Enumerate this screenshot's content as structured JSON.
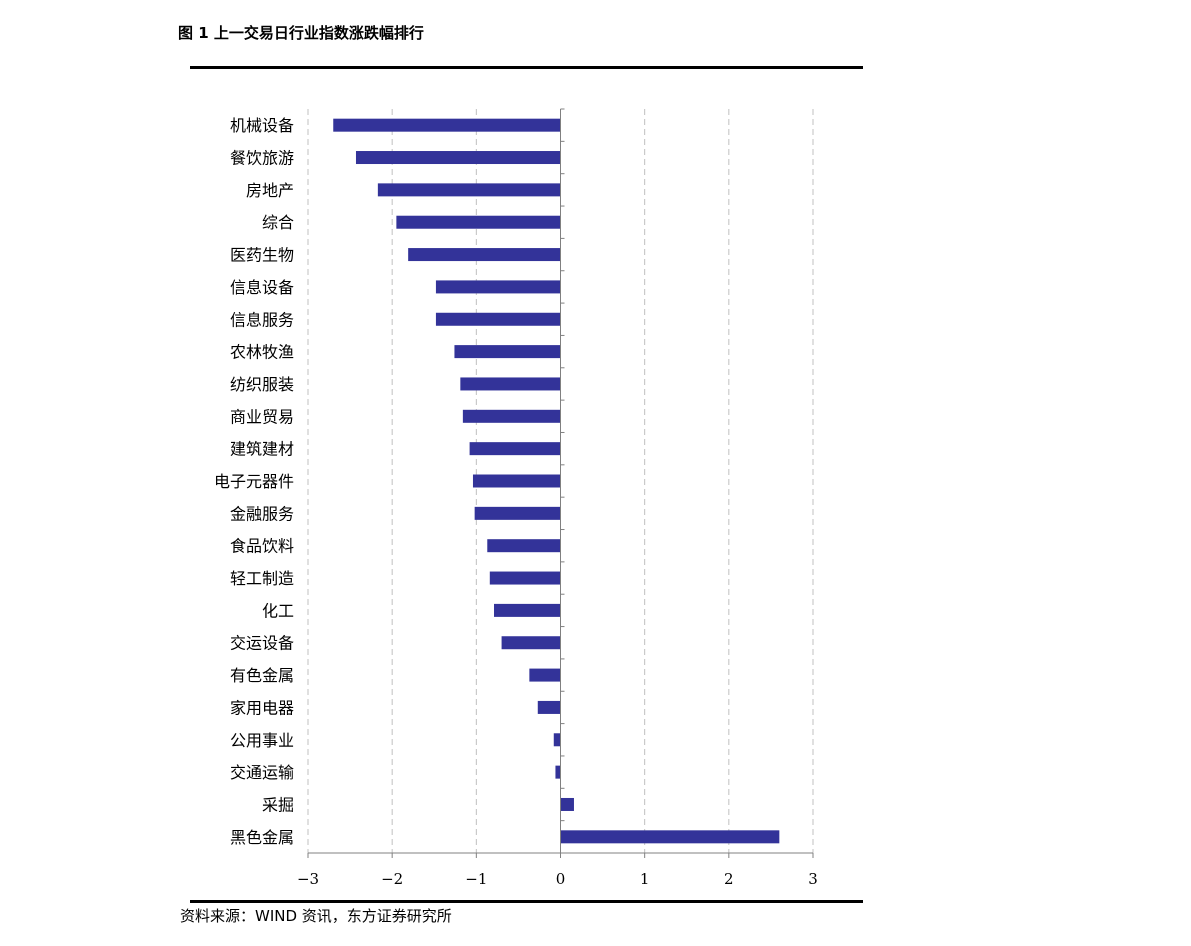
{
  "header": {
    "title": "图 1  上一交易日行业指数涨跌幅排行"
  },
  "footer": {
    "source": "资料来源：WIND 资讯，东方证券研究所"
  },
  "colors": {
    "bar": "#333399",
    "grid": "#c0c0c0",
    "axis": "#808080"
  },
  "chart_data": {
    "type": "bar",
    "orientation": "horizontal",
    "title": "",
    "xlabel": "",
    "ylabel": "",
    "xlim": [
      -3,
      3
    ],
    "x_ticks": [
      -3,
      -2,
      -1,
      0,
      1,
      2,
      3
    ],
    "x_tick_labels": [
      "−3",
      "−2",
      "−1",
      "0",
      "1",
      "2",
      "3"
    ],
    "grid": "vertical dashed",
    "legend": "none",
    "categories": [
      "机械设备",
      "餐饮旅游",
      "房地产",
      "综合",
      "医药生物",
      "信息设备",
      "信息服务",
      "农林牧渔",
      "纺织服装",
      "商业贸易",
      "建筑建材",
      "电子元器件",
      "金融服务",
      "食品饮料",
      "轻工制造",
      "化工",
      "交运设备",
      "有色金属",
      "家用电器",
      "公用事业",
      "交通运输",
      "采掘",
      "黑色金属"
    ],
    "values": [
      -2.7,
      -2.43,
      -2.17,
      -1.95,
      -1.81,
      -1.48,
      -1.48,
      -1.26,
      -1.19,
      -1.16,
      -1.08,
      -1.04,
      -1.02,
      -0.87,
      -0.84,
      -0.79,
      -0.7,
      -0.37,
      -0.27,
      -0.08,
      -0.06,
      0.16,
      2.6
    ]
  }
}
